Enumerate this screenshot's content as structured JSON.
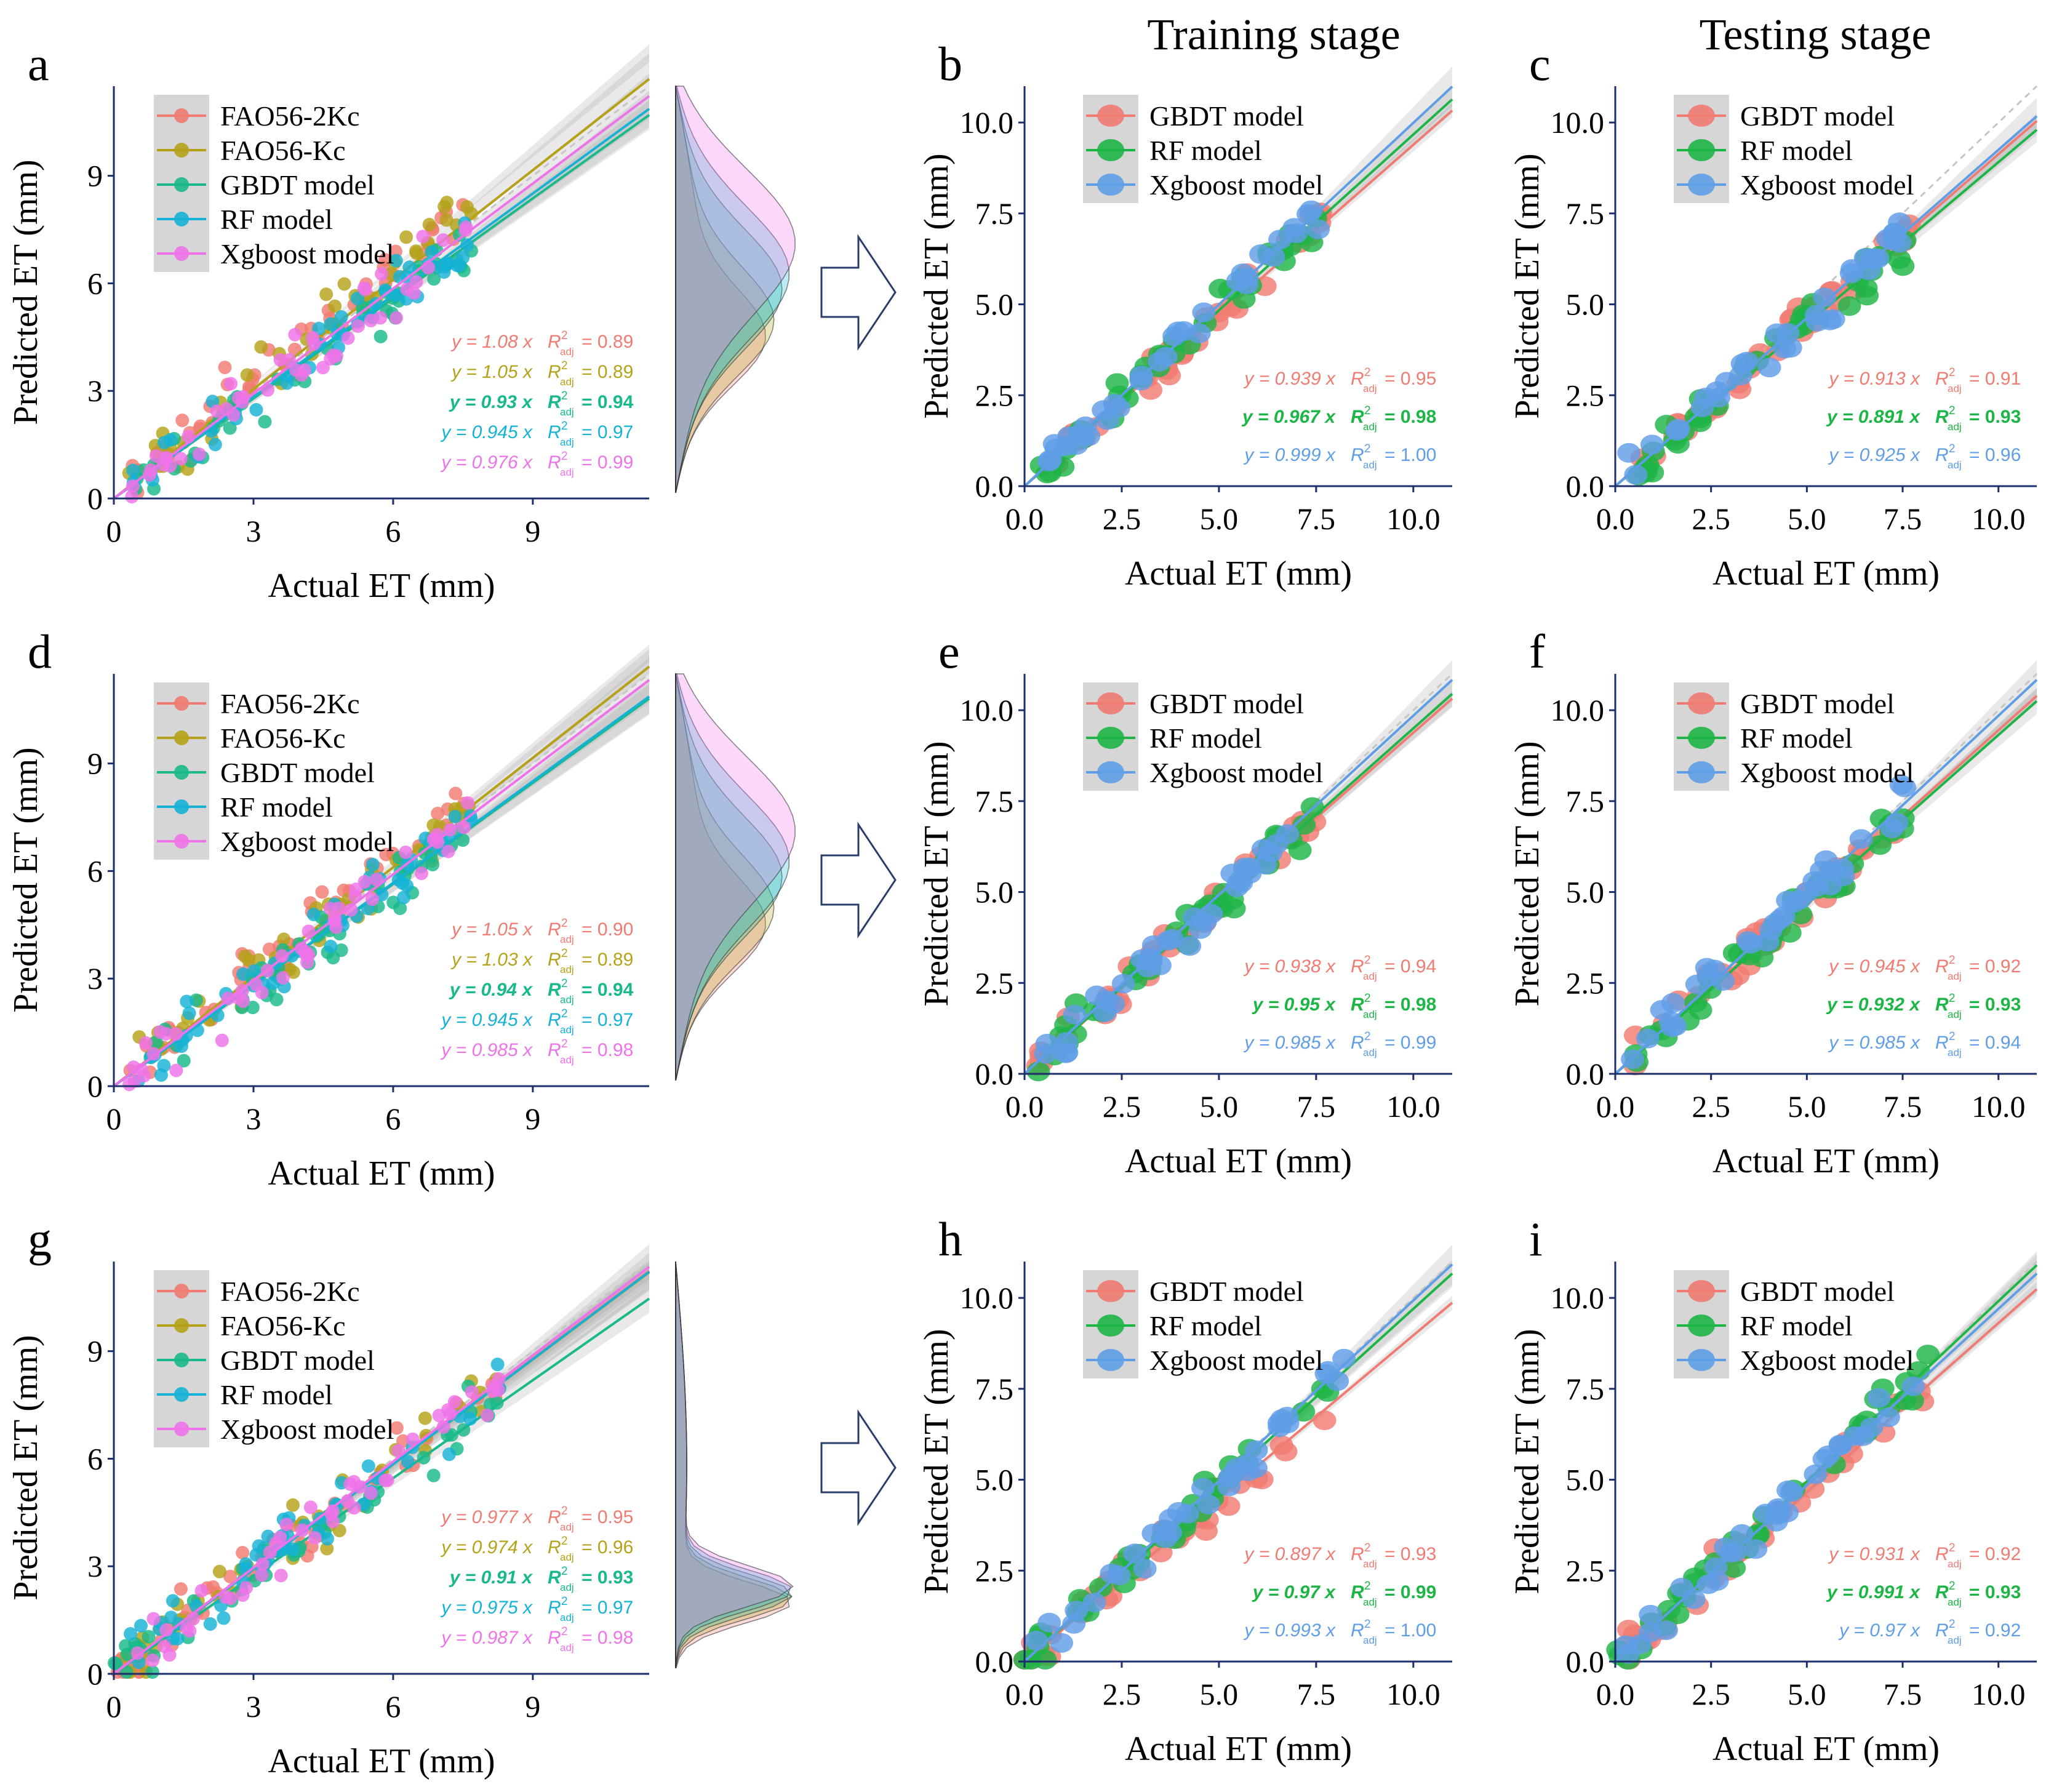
{
  "figure": {
    "headers": {
      "training": "Training stage",
      "testing": "Testing stage"
    }
  },
  "colors": {
    "FAO56-2Kc": "#f07b72",
    "FAO56-Kc": "#b5a21a",
    "GBDT model": "#19b98b",
    "RF model": "#16b2d6",
    "Xgboost model": "#ef73e8",
    "GBDT model (bc)": "#f07b72",
    "RF model (bc)": "#1eb547",
    "Xgboost model (bc)": "#5f9ee6"
  },
  "chart_data": [
    {
      "panel": "a",
      "type": "scatter",
      "xlabel": "Actual ET (mm)",
      "ylabel": "Predicted ET (mm)",
      "xlim": [
        0,
        11.5
      ],
      "ylim": [
        0,
        11.5
      ],
      "xticks": [
        "0",
        "3",
        "6",
        "9"
      ],
      "yticks": [
        "0",
        "3",
        "6",
        "9"
      ],
      "legend": [
        "FAO56-2Kc",
        "FAO56-Kc",
        "GBDT model",
        "RF model",
        "Xgboost model"
      ],
      "series": [
        {
          "name": "FAO56-2Kc",
          "slope": 1.08,
          "r2": "0.89",
          "eq": "y = 1.08 x"
        },
        {
          "name": "FAO56-Kc",
          "slope": 1.05,
          "r2": "0.89",
          "eq": "y = 1.05 x"
        },
        {
          "name": "GBDT model",
          "slope": 0.93,
          "r2": "0.94",
          "eq": "y = 0.93 x"
        },
        {
          "name": "RF model",
          "slope": 0.945,
          "r2": "0.97",
          "eq": "y = 0.945 x"
        },
        {
          "name": "Xgboost model",
          "slope": 0.976,
          "r2": "0.99",
          "eq": "y = 0.976 x"
        }
      ],
      "density": true
    },
    {
      "panel": "b",
      "type": "scatter",
      "xlabel": "Actual ET (mm)",
      "ylabel": "Predicted ET (mm)",
      "xlim": [
        0,
        11
      ],
      "ylim": [
        0,
        11
      ],
      "xticks": [
        "0.0",
        "2.5",
        "5.0",
        "7.5",
        "10.0"
      ],
      "yticks": [
        "0.0",
        "2.5",
        "5.0",
        "7.5",
        "10.0"
      ],
      "legend": [
        "GBDT model",
        "RF model",
        "Xgboost model"
      ],
      "series": [
        {
          "name": "GBDT model",
          "slope": 0.939,
          "r2": "0.95",
          "eq": "y = 0.939 x"
        },
        {
          "name": "RF model",
          "slope": 0.967,
          "r2": "0.98",
          "eq": "y = 0.967 x"
        },
        {
          "name": "Xgboost model",
          "slope": 0.999,
          "r2": "1.00",
          "eq": "y = 0.999 x"
        }
      ]
    },
    {
      "panel": "c",
      "type": "scatter",
      "xlabel": "Actual ET (mm)",
      "ylabel": "Predicted ET (mm)",
      "xlim": [
        0,
        11
      ],
      "ylim": [
        0,
        11
      ],
      "xticks": [
        "0.0",
        "2.5",
        "5.0",
        "7.5",
        "10.0"
      ],
      "yticks": [
        "0.0",
        "2.5",
        "5.0",
        "7.5",
        "10.0"
      ],
      "legend": [
        "GBDT model",
        "RF model",
        "Xgboost model"
      ],
      "series": [
        {
          "name": "GBDT model",
          "slope": 0.913,
          "r2": "0.91",
          "eq": "y = 0.913 x"
        },
        {
          "name": "RF model",
          "slope": 0.891,
          "r2": "0.93",
          "eq": "y = 0.891 x"
        },
        {
          "name": "Xgboost model",
          "slope": 0.925,
          "r2": "0.96",
          "eq": "y = 0.925 x"
        }
      ]
    },
    {
      "panel": "d",
      "type": "scatter",
      "xlabel": "Actual ET (mm)",
      "ylabel": "Predicted ET (mm)",
      "xlim": [
        0,
        11.5
      ],
      "ylim": [
        0,
        11.5
      ],
      "xticks": [
        "0",
        "3",
        "6",
        "9"
      ],
      "yticks": [
        "0",
        "3",
        "6",
        "9"
      ],
      "legend": [
        "FAO56-2Kc",
        "FAO56-Kc",
        "GBDT model",
        "RF model",
        "Xgboost model"
      ],
      "series": [
        {
          "name": "FAO56-2Kc",
          "slope": 1.05,
          "r2": "0.90",
          "eq": "y = 1.05 x"
        },
        {
          "name": "FAO56-Kc",
          "slope": 1.03,
          "r2": "0.89",
          "eq": "y = 1.03 x"
        },
        {
          "name": "GBDT model",
          "slope": 0.94,
          "r2": "0.94",
          "eq": "y = 0.94 x"
        },
        {
          "name": "RF model",
          "slope": 0.945,
          "r2": "0.97",
          "eq": "y = 0.945 x"
        },
        {
          "name": "Xgboost model",
          "slope": 0.985,
          "r2": "0.98",
          "eq": "y = 0.985 x"
        }
      ],
      "density": true
    },
    {
      "panel": "e",
      "type": "scatter",
      "xlabel": "Actual ET (mm)",
      "ylabel": "Predicted ET (mm)",
      "xlim": [
        0,
        11
      ],
      "ylim": [
        0,
        11
      ],
      "xticks": [
        "0.0",
        "2.5",
        "5.0",
        "7.5",
        "10.0"
      ],
      "yticks": [
        "0.0",
        "2.5",
        "5.0",
        "7.5",
        "10.0"
      ],
      "legend": [
        "GBDT model",
        "RF model",
        "Xgboost model"
      ],
      "series": [
        {
          "name": "GBDT model",
          "slope": 0.938,
          "r2": "0.94",
          "eq": "y = 0.938 x"
        },
        {
          "name": "RF model",
          "slope": 0.95,
          "r2": "0.98",
          "eq": "y = 0.95 x"
        },
        {
          "name": "Xgboost model",
          "slope": 0.985,
          "r2": "0.99",
          "eq": "y = 0.985 x"
        }
      ]
    },
    {
      "panel": "f",
      "type": "scatter",
      "xlabel": "Actual ET (mm)",
      "ylabel": "Predicted ET (mm)",
      "xlim": [
        0,
        11
      ],
      "ylim": [
        0,
        11
      ],
      "xticks": [
        "0.0",
        "2.5",
        "5.0",
        "7.5",
        "10.0"
      ],
      "yticks": [
        "0.0",
        "2.5",
        "5.0",
        "7.5",
        "10.0"
      ],
      "legend": [
        "GBDT model",
        "RF model",
        "Xgboost model"
      ],
      "series": [
        {
          "name": "GBDT model",
          "slope": 0.945,
          "r2": "0.92",
          "eq": "y = 0.945 x"
        },
        {
          "name": "RF model",
          "slope": 0.932,
          "r2": "0.93",
          "eq": "y = 0.932 x"
        },
        {
          "name": "Xgboost model",
          "slope": 0.985,
          "r2": "0.94",
          "eq": "y = 0.985 x"
        }
      ]
    },
    {
      "panel": "g",
      "type": "scatter",
      "xlabel": "Actual ET (mm)",
      "ylabel": "Predicted ET (mm)",
      "xlim": [
        0,
        11.5
      ],
      "ylim": [
        0,
        11.5
      ],
      "xticks": [
        "0",
        "3",
        "6",
        "9"
      ],
      "yticks": [
        "0",
        "3",
        "6",
        "9"
      ],
      "legend": [
        "FAO56-2Kc",
        "FAO56-Kc",
        "GBDT model",
        "RF model",
        "Xgboost model"
      ],
      "series": [
        {
          "name": "FAO56-2Kc",
          "slope": 0.977,
          "r2": "0.95",
          "eq": "y = 0.977 x"
        },
        {
          "name": "FAO56-Kc",
          "slope": 0.974,
          "r2": "0.96",
          "eq": "y = 0.974 x"
        },
        {
          "name": "GBDT model",
          "slope": 0.91,
          "r2": "0.93",
          "eq": "y = 0.91 x"
        },
        {
          "name": "RF model",
          "slope": 0.975,
          "r2": "0.97",
          "eq": "y = 0.975 x"
        },
        {
          "name": "Xgboost model",
          "slope": 0.987,
          "r2": "0.98",
          "eq": "y = 0.987 x"
        }
      ],
      "density": true
    },
    {
      "panel": "h",
      "type": "scatter",
      "xlabel": "Actual ET (mm)",
      "ylabel": "Predicted ET (mm)",
      "xlim": [
        0,
        11
      ],
      "ylim": [
        0,
        11
      ],
      "xticks": [
        "0.0",
        "2.5",
        "5.0",
        "7.5",
        "10.0"
      ],
      "yticks": [
        "0.0",
        "2.5",
        "5.0",
        "7.5",
        "10.0"
      ],
      "legend": [
        "GBDT model",
        "RF model",
        "Xgboost model"
      ],
      "series": [
        {
          "name": "GBDT model",
          "slope": 0.897,
          "r2": "0.93",
          "eq": "y = 0.897 x"
        },
        {
          "name": "RF model",
          "slope": 0.97,
          "r2": "0.99",
          "eq": "y = 0.97 x"
        },
        {
          "name": "Xgboost model",
          "slope": 0.993,
          "r2": "1.00",
          "eq": "y = 0.993 x"
        }
      ]
    },
    {
      "panel": "i",
      "type": "scatter",
      "xlabel": "Actual ET (mm)",
      "ylabel": "Predicted ET (mm)",
      "xlim": [
        0,
        11
      ],
      "ylim": [
        0,
        11
      ],
      "xticks": [
        "0.0",
        "2.5",
        "5.0",
        "7.5",
        "10.0"
      ],
      "yticks": [
        "0.0",
        "2.5",
        "5.0",
        "7.5",
        "10.0"
      ],
      "legend": [
        "GBDT model",
        "RF model",
        "Xgboost model"
      ],
      "series": [
        {
          "name": "GBDT model",
          "slope": 0.931,
          "r2": "0.92",
          "eq": "y = 0.931 x"
        },
        {
          "name": "RF model",
          "slope": 0.991,
          "r2": "0.93",
          "eq": "y = 0.991 x"
        },
        {
          "name": "Xgboost model",
          "slope": 0.97,
          "r2": "0.92",
          "eq": "y = 0.97 x"
        }
      ]
    }
  ]
}
